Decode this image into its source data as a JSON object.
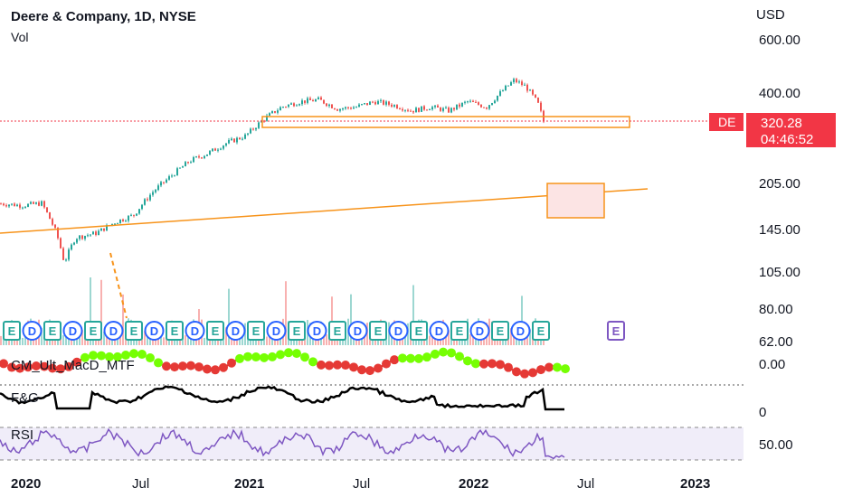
{
  "header": {
    "title": "Deere & Company, 1D, NYSE",
    "volume_label": "Vol"
  },
  "price_scale": {
    "currency": "USD",
    "ticks": [
      "600.00",
      "400.00",
      "205.00",
      "145.00",
      "105.00",
      "80.00",
      "62.00"
    ],
    "log_scale": true
  },
  "symbol_tag": {
    "symbol": "DE",
    "price": "320.28",
    "countdown": "04:46:52",
    "color": "#f23645"
  },
  "indicators": {
    "macd": {
      "name": "CM_Ult_MacD_MTF",
      "scale_label": "0.00"
    },
    "fg": {
      "name": "F&G",
      "scale_label": "0"
    },
    "rsi": {
      "name": "RSI",
      "scale_label": "50.00"
    }
  },
  "time_axis": [
    "2020",
    "Jul",
    "2021",
    "Jul",
    "2022",
    "Jul",
    "2023"
  ],
  "earnings_badges": [
    "E",
    "D",
    "E",
    "D",
    "E",
    "D",
    "E",
    "D",
    "E",
    "D",
    "E",
    "D",
    "E",
    "D",
    "E",
    "D",
    "E",
    "D",
    "E",
    "D",
    "E",
    "D",
    "E",
    "D",
    "E",
    "D",
    "E",
    "E"
  ],
  "colors": {
    "up": "#26a69a",
    "down": "#ef5350",
    "orange": "#f7931a",
    "purple": "#7e57c2",
    "badge_green": "#26a69a",
    "badge_blue": "#2962ff"
  },
  "chart_data": {
    "type": "candlestick",
    "title": "Deere & Company, 1D, NYSE",
    "x_range": [
      "2019-10",
      "2023-04"
    ],
    "y_range": [
      62,
      600
    ],
    "series": [
      {
        "name": "DE",
        "points": [
          [
            "2019-10-15",
            175
          ],
          [
            "2019-12-01",
            175
          ],
          [
            "2020-01-15",
            172
          ],
          [
            "2020-02-15",
            175
          ],
          [
            "2020-03-10",
            140
          ],
          [
            "2020-03-23",
            112
          ],
          [
            "2020-04-10",
            135
          ],
          [
            "2020-05-15",
            140
          ],
          [
            "2020-06-15",
            152
          ],
          [
            "2020-07-15",
            160
          ],
          [
            "2020-08-15",
            190
          ],
          [
            "2020-09-15",
            215
          ],
          [
            "2020-10-15",
            240
          ],
          [
            "2020-11-15",
            255
          ],
          [
            "2020-12-15",
            275
          ],
          [
            "2021-01-15",
            290
          ],
          [
            "2021-02-15",
            330
          ],
          [
            "2021-03-15",
            360
          ],
          [
            "2021-04-15",
            375
          ],
          [
            "2021-05-15",
            380
          ],
          [
            "2021-06-15",
            355
          ],
          [
            "2021-07-15",
            360
          ],
          [
            "2021-08-15",
            375
          ],
          [
            "2021-09-15",
            365
          ],
          [
            "2021-10-15",
            350
          ],
          [
            "2021-11-15",
            360
          ],
          [
            "2021-12-15",
            350
          ],
          [
            "2022-01-15",
            375
          ],
          [
            "2022-02-15",
            360
          ],
          [
            "2022-03-15",
            410
          ],
          [
            "2022-04-01",
            440
          ],
          [
            "2022-04-20",
            420
          ],
          [
            "2022-05-10",
            370
          ],
          [
            "2022-05-20",
            320.28
          ]
        ]
      }
    ],
    "current_price": 320.28,
    "annotations": {
      "support_zone": [
        340,
        355
      ],
      "trendline": [
        [
          "2019-10-01",
          140
        ],
        [
          "2022-10-15",
          205
        ]
      ],
      "target_zone": [
        175,
        220
      ]
    }
  }
}
